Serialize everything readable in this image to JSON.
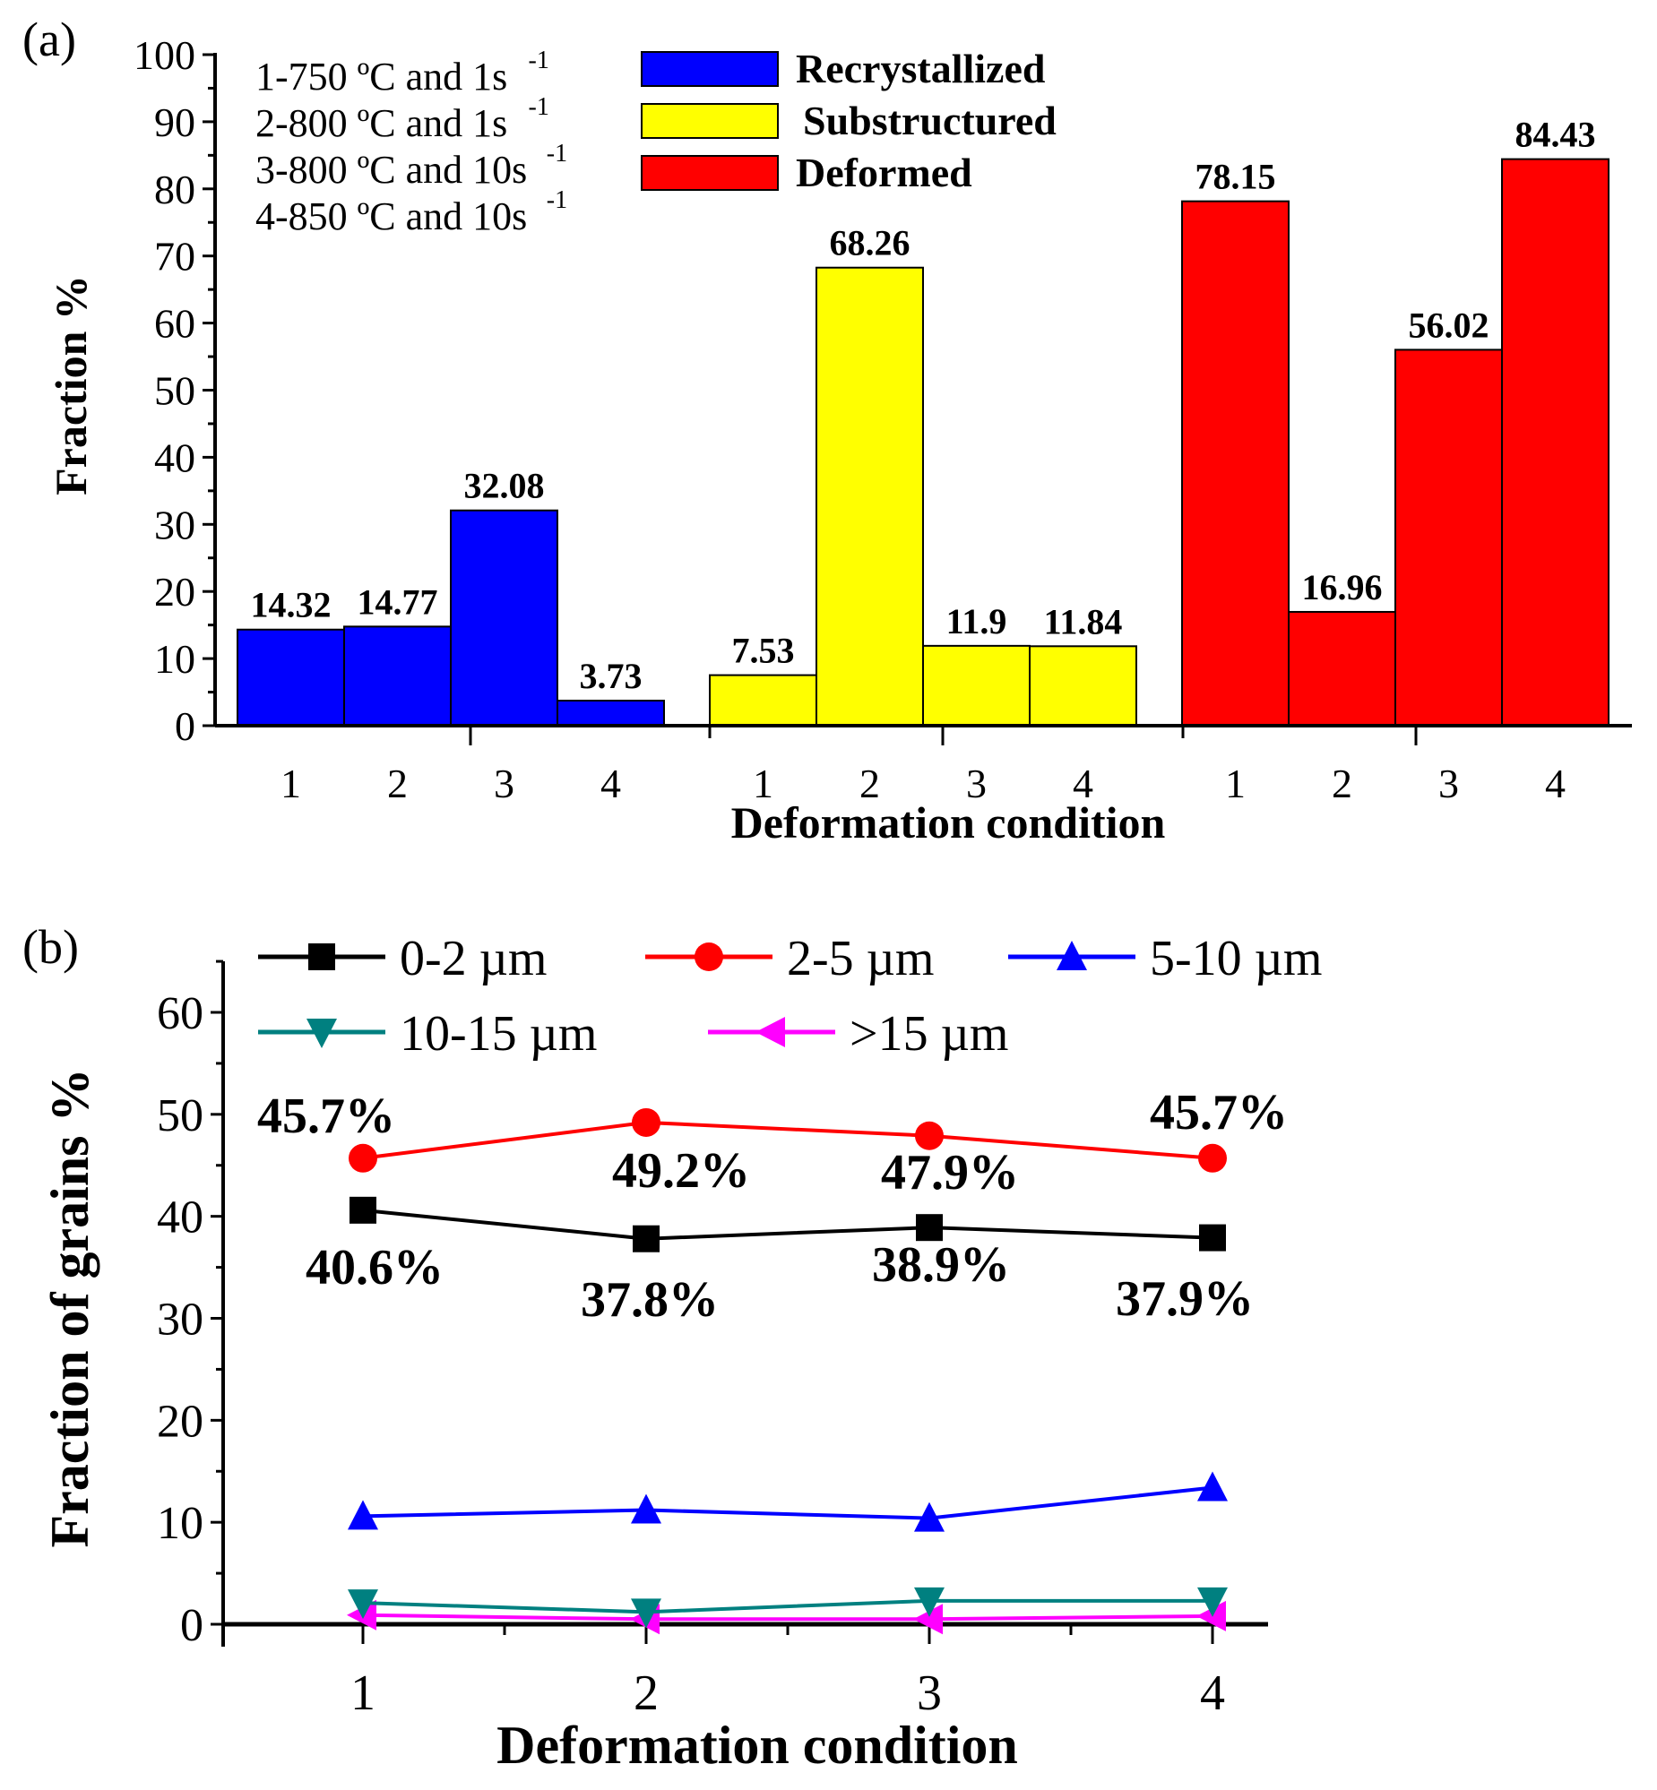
{
  "chart_data": [
    {
      "panel_label": "(a)",
      "type": "bar",
      "xlabel": "Deformation condition",
      "ylabel": "Fraction %",
      "ylim": [
        0,
        100
      ],
      "yticks": [
        "0",
        "10",
        "20",
        "30",
        "40",
        "50",
        "60",
        "70",
        "80",
        "90",
        "100"
      ],
      "categories": [
        "1",
        "2",
        "3",
        "4"
      ],
      "conditions": [
        {
          "text": "1-750 ºC and 1s",
          "sup": "-1"
        },
        {
          "text": "2-800 ºC and 1s",
          "sup": "-1"
        },
        {
          "text": "3-800 ºC and 10s",
          "sup": "-1"
        },
        {
          "text": "4-850 ºC and 10s",
          "sup": "-1"
        }
      ],
      "legend_position": "top-center",
      "series": [
        {
          "name": "Recrystallized",
          "color": "#0000ff",
          "values": [
            14.32,
            14.77,
            32.08,
            3.73
          ],
          "labels": [
            "14.32",
            "14.77",
            "32.08",
            "3.73"
          ]
        },
        {
          "name": "Substructured",
          "color": "#ffff00",
          "values": [
            7.53,
            68.26,
            11.9,
            11.84
          ],
          "labels": [
            "7.53",
            "68.26",
            "11.9",
            "11.84"
          ]
        },
        {
          "name": "Deformed",
          "color": "#ff0000",
          "values": [
            78.15,
            16.96,
            56.02,
            84.43
          ],
          "labels": [
            "78.15",
            "16.96",
            "56.02",
            "84.43"
          ]
        }
      ]
    },
    {
      "panel_label": "(b)",
      "type": "line",
      "xlabel": "Deformation condition",
      "ylabel": "Fraction of grains %",
      "ylim": [
        0,
        65
      ],
      "xlim": [
        0.5,
        4.2
      ],
      "yticks": [
        "0",
        "10",
        "20",
        "30",
        "40",
        "50",
        "60"
      ],
      "x": [
        1,
        2,
        3,
        4
      ],
      "xticks": [
        "1",
        "2",
        "3",
        "4"
      ],
      "legend_position": "top",
      "series": [
        {
          "name": "0-2 µm",
          "color": "#000000",
          "marker": "square",
          "values": [
            40.6,
            37.8,
            38.9,
            37.9
          ],
          "labels": [
            "40.6%",
            "37.8%",
            "38.9%",
            "37.9%"
          ]
        },
        {
          "name": "2-5 µm",
          "color": "#ff0000",
          "marker": "circle",
          "values": [
            45.7,
            49.2,
            47.9,
            45.7
          ],
          "labels": [
            "45.7%",
            "49.2%",
            "47.9%",
            "45.7%"
          ]
        },
        {
          "name": "5-10 µm",
          "color": "#0000ff",
          "marker": "triangle-up",
          "values": [
            10.6,
            11.2,
            10.4,
            13.4
          ]
        },
        {
          "name": "10-15 µm",
          "color": "#008080",
          "marker": "triangle-down",
          "values": [
            2.1,
            1.2,
            2.3,
            2.3
          ]
        },
        {
          "name": ">15 µm",
          "color": "#ff00ff",
          "marker": "triangle-left",
          "values": [
            0.9,
            0.5,
            0.5,
            0.8
          ]
        }
      ]
    }
  ]
}
